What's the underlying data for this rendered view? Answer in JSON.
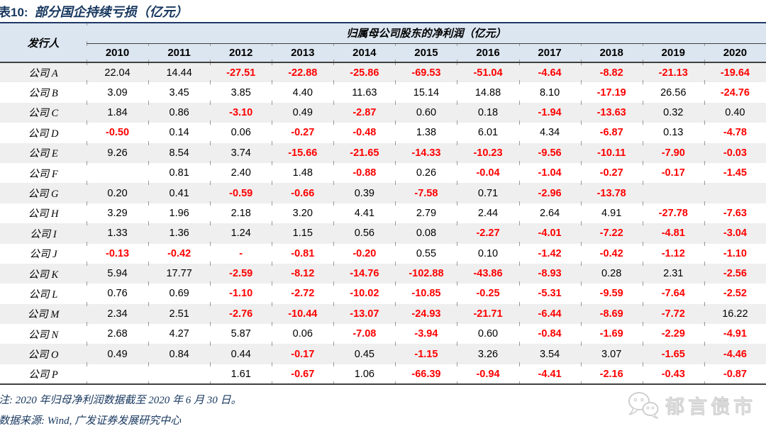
{
  "title": {
    "label": "表10:",
    "text": "部分国企持续亏损（亿元）"
  },
  "table": {
    "issuer_header": "发行人",
    "group_header": "归属母公司股东的净利润（亿元）",
    "years": [
      "2010",
      "2011",
      "2012",
      "2013",
      "2014",
      "2015",
      "2016",
      "2017",
      "2018",
      "2019",
      "2020"
    ],
    "rows": [
      {
        "issuer": "公司 A",
        "values": [
          "22.04",
          "14.44",
          "-27.51",
          "-22.88",
          "-25.86",
          "-69.53",
          "-51.04",
          "-4.64",
          "-8.82",
          "-21.13",
          "-19.64"
        ]
      },
      {
        "issuer": "公司 B",
        "values": [
          "3.09",
          "3.45",
          "3.85",
          "4.40",
          "11.63",
          "15.14",
          "14.88",
          "8.10",
          "-17.19",
          "26.56",
          "-24.76"
        ]
      },
      {
        "issuer": "公司 C",
        "values": [
          "1.84",
          "0.86",
          "-3.10",
          "0.49",
          "-2.87",
          "0.60",
          "0.18",
          "-1.94",
          "-13.63",
          "0.32",
          "0.40"
        ]
      },
      {
        "issuer": "公司 D",
        "values": [
          "-0.50",
          "0.14",
          "0.06",
          "-0.27",
          "-0.48",
          "1.38",
          "6.01",
          "4.34",
          "-6.87",
          "0.13",
          "-4.78"
        ]
      },
      {
        "issuer": "公司 E",
        "values": [
          "9.26",
          "8.54",
          "3.74",
          "-15.66",
          "-21.65",
          "-14.33",
          "-10.23",
          "-9.56",
          "-10.11",
          "-7.90",
          "-0.03"
        ]
      },
      {
        "issuer": "公司 F",
        "values": [
          "",
          "0.81",
          "2.40",
          "1.48",
          "-0.88",
          "0.26",
          "-0.04",
          "-1.04",
          "-0.27",
          "-0.17",
          "-1.45"
        ]
      },
      {
        "issuer": "公司 G",
        "values": [
          "0.20",
          "0.41",
          "-0.59",
          "-0.66",
          "0.39",
          "-7.58",
          "0.71",
          "-2.96",
          "-13.78",
          "",
          ""
        ]
      },
      {
        "issuer": "公司 H",
        "values": [
          "3.29",
          "1.96",
          "2.18",
          "3.20",
          "4.41",
          "2.79",
          "2.44",
          "2.64",
          "4.91",
          "-27.78",
          "-7.63"
        ]
      },
      {
        "issuer": "公司 I",
        "values": [
          "1.33",
          "1.36",
          "1.24",
          "1.15",
          "0.56",
          "0.08",
          "-2.27",
          "-4.01",
          "-7.22",
          "-4.81",
          "-3.04"
        ]
      },
      {
        "issuer": "公司 J",
        "values": [
          "-0.13",
          "-0.42",
          "-",
          "-0.81",
          "-0.20",
          "0.55",
          "0.10",
          "-1.42",
          "-0.42",
          "-1.12",
          "-1.10"
        ]
      },
      {
        "issuer": "公司 K",
        "values": [
          "5.94",
          "17.77",
          "-2.59",
          "-8.12",
          "-14.76",
          "-102.88",
          "-43.86",
          "-8.93",
          "0.28",
          "2.31",
          "-2.56"
        ]
      },
      {
        "issuer": "公司 L",
        "values": [
          "0.76",
          "0.69",
          "-1.10",
          "-2.72",
          "-10.02",
          "-10.85",
          "-0.25",
          "-5.31",
          "-9.59",
          "-7.64",
          "-2.52"
        ]
      },
      {
        "issuer": "公司 M",
        "values": [
          "2.34",
          "2.51",
          "-2.76",
          "-10.44",
          "-13.07",
          "-24.93",
          "-21.71",
          "-6.44",
          "-8.69",
          "-7.72",
          "16.22"
        ]
      },
      {
        "issuer": "公司 N",
        "values": [
          "2.68",
          "4.27",
          "5.87",
          "0.06",
          "-7.08",
          "-3.94",
          "0.60",
          "-0.84",
          "-1.69",
          "-2.29",
          "-4.91"
        ]
      },
      {
        "issuer": "公司 O",
        "values": [
          "0.49",
          "0.84",
          "0.44",
          "-0.17",
          "0.45",
          "-1.15",
          "3.26",
          "3.54",
          "3.07",
          "-1.65",
          "-4.46"
        ]
      },
      {
        "issuer": "公司 P",
        "values": [
          "",
          "",
          "1.61",
          "-0.67",
          "1.06",
          "-66.39",
          "-0.94",
          "-4.41",
          "-2.16",
          "-0.43",
          "-0.87"
        ]
      }
    ]
  },
  "notes": {
    "note": "注: 2020 年归母净利润数据截至 2020 年 6 月 30 日。",
    "source": "数据来源: Wind, 广发证券发展研究中心"
  },
  "watermark": {
    "icon": "wechat-icon",
    "text": "郁言债市"
  },
  "colors": {
    "title": "#17375E",
    "header_bg": "#DCE6F1",
    "alt_row_bg": "#EFEFEF",
    "negative": "#FF0000",
    "text": "#000000",
    "border_dark": "#404040",
    "watermark": "#D9D9D9"
  }
}
